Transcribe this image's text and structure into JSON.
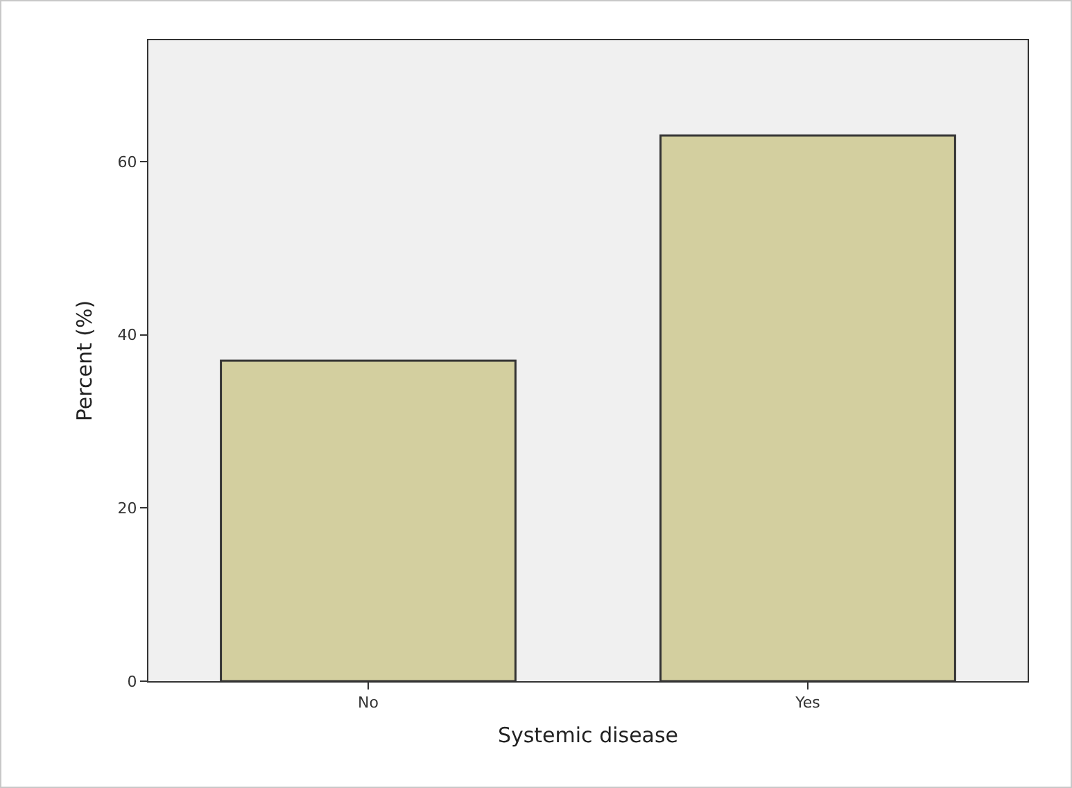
{
  "chart_data": {
    "type": "bar",
    "xlabel": "Systemic disease",
    "ylabel": "Percent (%)",
    "categories": [
      "No",
      "Yes"
    ],
    "values": [
      37,
      63
    ],
    "color": "#d3cf9f",
    "ylim": [
      0,
      74
    ],
    "yticks": [
      0,
      20,
      40,
      60
    ],
    "grid": false,
    "legend": false
  }
}
